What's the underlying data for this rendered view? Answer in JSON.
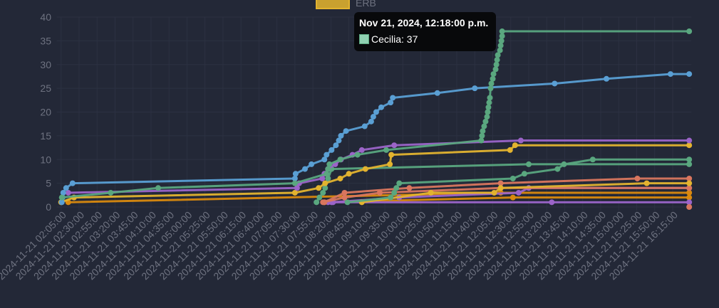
{
  "legend": {
    "label": "ERB",
    "color": "#c9a12f"
  },
  "tooltip": {
    "title": "Nov 21, 2024, 12:18:00 p.m.",
    "series": "Cecilia",
    "value": "37",
    "text": "Cecilia: 37"
  },
  "chart_data": {
    "type": "line",
    "title": "",
    "xlabel": "",
    "ylabel": "",
    "ylim": [
      0,
      40
    ],
    "xlim": [
      "01:59",
      "16:41"
    ],
    "grid": true,
    "legend_position": "top",
    "y_ticks": [
      "0",
      "5",
      "10",
      "15",
      "20",
      "25",
      "30",
      "35",
      "40"
    ],
    "x_ticks": [
      "02:05",
      "02:30",
      "02:55",
      "03:20",
      "03:45",
      "04:10",
      "04:35",
      "05:00",
      "05:25",
      "05:50",
      "06:15",
      "06:40",
      "07:05",
      "07:30",
      "07:55",
      "08:20",
      "08:45",
      "09:10",
      "09:35",
      "10:00",
      "10:25",
      "10:50",
      "11:15",
      "11:40",
      "12:05",
      "12:30",
      "12:55",
      "13:20",
      "13:45",
      "14:10",
      "14:35",
      "15:00",
      "15:25",
      "15:50",
      "16:15"
    ],
    "x_tick_labels": [
      "2024-11-21 02:05:00",
      "2024-11-21 02:30:00",
      "2024-11-21 02:55:00",
      "2024-11-21 03:20:00",
      "2024-11-21 03:45:00",
      "2024-11-21 04:10:00",
      "2024-11-21 04:35:00",
      "2024-11-21 05:00:00",
      "2024-11-21 05:25:00",
      "2024-11-21 05:50:00",
      "2024-11-21 06:15:00",
      "2024-11-21 06:40:00",
      "2024-11-21 07:05:00",
      "2024-11-21 07:30:00",
      "2024-11-21 07:55:00",
      "2024-11-21 08:20:00",
      "2024-11-21 08:45:00",
      "2024-11-21 09:10:00",
      "2024-11-21 09:35:00",
      "2024-11-21 10:00:00",
      "2024-11-21 10:25:00",
      "2024-11-21 10:50:00",
      "2024-11-21 11:15:00",
      "2024-11-21 11:40:00",
      "2024-11-21 12:05:00",
      "2024-11-21 12:30:00",
      "2024-11-21 12:55:00",
      "2024-11-21 13:20:00",
      "2024-11-21 13:45:00",
      "2024-11-21 14:10:00",
      "2024-11-21 14:35:00",
      "2024-11-21 15:00:00",
      "2024-11-21 15:25:00",
      "2024-11-21 15:50:00",
      "2024-11-21 16:15:00"
    ],
    "series": [
      {
        "color": "#d9890e",
        "points": [
          [
            "02:15",
            1
          ],
          [
            "12:16",
            3
          ],
          [
            "16:38",
            3
          ]
        ]
      },
      {
        "color": "#d9890e",
        "points": [
          [
            "08:11",
            1
          ],
          [
            "12:33",
            2
          ],
          [
            "16:38",
            2
          ]
        ]
      },
      {
        "color": "#9b64c8",
        "points": [
          [
            "08:16",
            1
          ],
          [
            "08:23",
            1
          ],
          [
            "13:27",
            1
          ],
          [
            "16:38",
            1
          ]
        ]
      },
      {
        "color": "#9b64c8",
        "points": [
          [
            "08:21",
            1
          ],
          [
            "09:55",
            2
          ],
          [
            "12:41",
            3
          ],
          [
            "12:55",
            4
          ],
          [
            "16:38",
            4
          ]
        ]
      },
      {
        "color": "#d9765e",
        "points": [
          [
            "08:09",
            1
          ],
          [
            "08:39",
            2
          ],
          [
            "09:28",
            3
          ],
          [
            "12:16",
            4
          ],
          [
            "16:38",
            4
          ]
        ]
      },
      {
        "color": "#d9765e",
        "points": [
          [
            "08:11",
            1
          ],
          [
            "08:39",
            3
          ],
          [
            "10:09",
            4
          ],
          [
            "12:16",
            5
          ],
          [
            "15:26",
            6
          ],
          [
            "16:38",
            6
          ]
        ]
      },
      {
        "color": "#d9765e",
        "points": [
          [
            "16:38",
            0
          ]
        ]
      },
      {
        "color": "#e3b32f",
        "points": [
          [
            "09:03",
            1
          ],
          [
            "10:39",
            3
          ],
          [
            "12:07",
            3
          ],
          [
            "12:16",
            4
          ],
          [
            "15:39",
            5
          ],
          [
            "16:38",
            5
          ]
        ]
      },
      {
        "color": "#5aa77f",
        "points": [
          [
            "08:00",
            1
          ],
          [
            "08:04",
            2
          ],
          [
            "08:09",
            3
          ],
          [
            "08:12",
            4
          ],
          [
            "08:16",
            6
          ],
          [
            "08:21",
            8
          ],
          [
            "12:55",
            9
          ],
          [
            "16:38",
            9
          ]
        ]
      },
      {
        "color": "#5aa77f",
        "points": [
          [
            "08:43",
            1
          ],
          [
            "09:43",
            2
          ],
          [
            "09:48",
            3
          ],
          [
            "09:51",
            4
          ],
          [
            "09:55",
            5
          ],
          [
            "12:33",
            6
          ],
          [
            "12:49",
            7
          ],
          [
            "13:35",
            8
          ],
          [
            "13:44",
            9
          ],
          [
            "14:24",
            10
          ],
          [
            "16:38",
            10
          ]
        ]
      },
      {
        "name": "ERB",
        "color": "#e3b32f",
        "points": [
          [
            "02:05",
            1
          ],
          [
            "02:23",
            2
          ],
          [
            "07:30",
            3
          ],
          [
            "08:03",
            4
          ],
          [
            "08:12",
            5
          ],
          [
            "08:33",
            6
          ],
          [
            "08:45",
            7
          ],
          [
            "09:08",
            8
          ],
          [
            "09:42",
            9
          ],
          [
            "09:44",
            11
          ],
          [
            "12:29",
            12
          ],
          [
            "12:36",
            13
          ],
          [
            "16:38",
            13
          ]
        ]
      },
      {
        "color": "#9b64c8",
        "points": [
          [
            "02:15",
            3
          ],
          [
            "07:33",
            4
          ],
          [
            "07:36",
            5
          ],
          [
            "08:08",
            6
          ],
          [
            "08:11",
            7
          ],
          [
            "08:16",
            8
          ],
          [
            "08:26",
            9
          ],
          [
            "08:34",
            10
          ],
          [
            "08:50",
            11
          ],
          [
            "09:03",
            12
          ],
          [
            "09:48",
            13
          ],
          [
            "12:44",
            14
          ],
          [
            "16:38",
            14
          ]
        ]
      },
      {
        "color": "#5a9fd4",
        "points": [
          [
            "02:06",
            1
          ],
          [
            "02:07",
            2
          ],
          [
            "02:08",
            3
          ],
          [
            "02:12",
            4
          ],
          [
            "02:21",
            5
          ],
          [
            "07:30",
            6
          ],
          [
            "07:31",
            7
          ],
          [
            "07:44",
            8
          ],
          [
            "07:53",
            9
          ],
          [
            "08:11",
            10
          ],
          [
            "08:14",
            11
          ],
          [
            "08:21",
            12
          ],
          [
            "08:27",
            13
          ],
          [
            "08:31",
            14
          ],
          [
            "08:34",
            15
          ],
          [
            "08:41",
            16
          ],
          [
            "09:07",
            17
          ],
          [
            "09:16",
            18
          ],
          [
            "09:19",
            19
          ],
          [
            "09:23",
            20
          ],
          [
            "09:30",
            21
          ],
          [
            "09:43",
            22
          ],
          [
            "09:46",
            23
          ],
          [
            "10:48",
            24
          ],
          [
            "11:40",
            25
          ],
          [
            "13:31",
            26
          ],
          [
            "14:43",
            27
          ],
          [
            "16:12",
            28
          ],
          [
            "16:38",
            28
          ]
        ]
      },
      {
        "name": "Cecilia",
        "color": "#5aa77f",
        "points": [
          [
            "02:06",
            2
          ],
          [
            "03:14",
            3
          ],
          [
            "04:20",
            4
          ],
          [
            "07:30",
            5
          ],
          [
            "08:14",
            7
          ],
          [
            "08:16",
            8
          ],
          [
            "08:18",
            9
          ],
          [
            "08:33",
            10
          ],
          [
            "08:57",
            11
          ],
          [
            "09:37",
            12
          ],
          [
            "11:49",
            14
          ],
          [
            "11:50",
            15
          ],
          [
            "11:51",
            16
          ],
          [
            "11:53",
            17
          ],
          [
            "11:55",
            18
          ],
          [
            "11:57",
            19
          ],
          [
            "11:58",
            20
          ],
          [
            "11:59",
            21
          ],
          [
            "12:00",
            22
          ],
          [
            "12:01",
            23
          ],
          [
            "12:02",
            25
          ],
          [
            "12:03",
            26
          ],
          [
            "12:05",
            27
          ],
          [
            "12:06",
            28
          ],
          [
            "12:09",
            29
          ],
          [
            "12:10",
            30
          ],
          [
            "12:11",
            31
          ],
          [
            "12:12",
            32
          ],
          [
            "12:15",
            33
          ],
          [
            "12:16",
            34
          ],
          [
            "12:17",
            35
          ],
          [
            "12:18",
            36
          ],
          [
            "12:18",
            37
          ],
          [
            "16:38",
            37
          ]
        ]
      }
    ]
  }
}
